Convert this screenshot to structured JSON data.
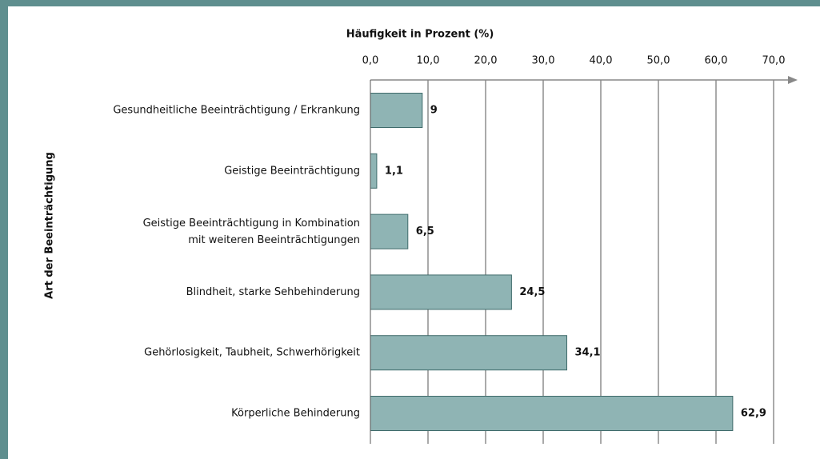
{
  "chart_data": {
    "type": "bar",
    "orientation": "horizontal",
    "title": "Häufigkeit in Prozent (%)",
    "y_label": "Art der Beeinträchtigung",
    "categories": [
      "Gesundheitliche Beeinträchtigung / Erkrankung",
      "Geistige Beeinträchtigung",
      "Geistige Beeinträchtigung in Kombination\nmit weiteren Beeinträchtigungen",
      "Blindheit, starke Sehbehinderung",
      "Gehörlosigkeit, Taubheit, Schwerhörigkeit",
      "Körperliche Behinderung"
    ],
    "values": [
      9,
      1.1,
      6.5,
      24.5,
      34.1,
      62.9
    ],
    "value_labels": [
      "9",
      "1,1",
      "6,5",
      "24,5",
      "34,1",
      "62,9"
    ],
    "color": "#8fb4b4",
    "xlim": [
      0,
      70
    ],
    "xticks": [
      {
        "value": 0,
        "label": "0,0"
      },
      {
        "value": 10,
        "label": "10,0"
      },
      {
        "value": 20,
        "label": "20,0"
      },
      {
        "value": 30,
        "label": "30,0"
      },
      {
        "value": 40,
        "label": "40,0"
      },
      {
        "value": 50,
        "label": "50,0"
      },
      {
        "value": 60,
        "label": "60,0"
      },
      {
        "value": 70,
        "label": "70,0"
      }
    ],
    "grid": true
  }
}
